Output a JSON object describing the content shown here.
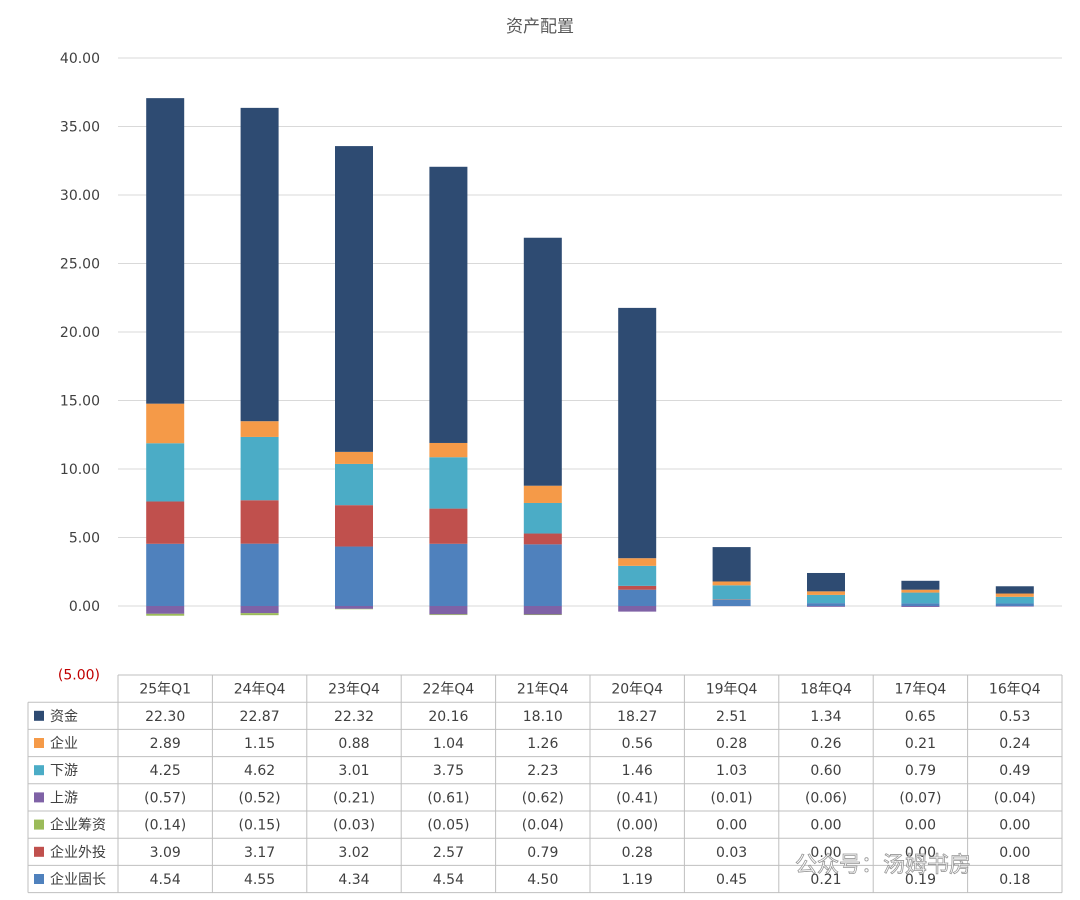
{
  "chart_data": {
    "type": "bar",
    "stacked": true,
    "title": "资产配置",
    "xlabel": "",
    "ylabel": "",
    "ylim": [
      -5,
      40
    ],
    "yticks": [
      "(5.00)",
      "0.00",
      "5.00",
      "10.00",
      "15.00",
      "20.00",
      "25.00",
      "30.00",
      "35.00",
      "40.00"
    ],
    "categories": [
      "25年Q1",
      "24年Q4",
      "23年Q4",
      "22年Q4",
      "21年Q4",
      "20年Q4",
      "19年Q4",
      "18年Q4",
      "17年Q4",
      "16年Q4"
    ],
    "series": [
      {
        "name": "资金",
        "color": "#2e4b72",
        "values": [
          22.3,
          22.87,
          22.32,
          20.16,
          18.1,
          18.27,
          2.51,
          1.34,
          0.65,
          0.53
        ],
        "labels": [
          "22.30",
          "22.87",
          "22.32",
          "20.16",
          "18.10",
          "18.27",
          "2.51",
          "1.34",
          "0.65",
          "0.53"
        ]
      },
      {
        "name": "企业",
        "color": "#f59a48",
        "values": [
          2.89,
          1.15,
          0.88,
          1.04,
          1.26,
          0.56,
          0.28,
          0.26,
          0.21,
          0.24
        ],
        "labels": [
          "2.89",
          "1.15",
          "0.88",
          "1.04",
          "1.26",
          "0.56",
          "0.28",
          "0.26",
          "0.21",
          "0.24"
        ]
      },
      {
        "name": "下游",
        "color": "#4bacc6",
        "values": [
          4.25,
          4.62,
          3.01,
          3.75,
          2.23,
          1.46,
          1.03,
          0.6,
          0.79,
          0.49
        ],
        "labels": [
          "4.25",
          "4.62",
          "3.01",
          "3.75",
          "2.23",
          "1.46",
          "1.03",
          "0.60",
          "0.79",
          "0.49"
        ]
      },
      {
        "name": "上游",
        "color": "#7f62a6",
        "values": [
          -0.57,
          -0.52,
          -0.21,
          -0.61,
          -0.62,
          -0.41,
          -0.01,
          -0.06,
          -0.07,
          -0.04
        ],
        "labels": [
          "(0.57)",
          "(0.52)",
          "(0.21)",
          "(0.61)",
          "(0.62)",
          "(0.41)",
          "(0.01)",
          "(0.06)",
          "(0.07)",
          "(0.04)"
        ]
      },
      {
        "name": "企业筹资",
        "color": "#9bbb59",
        "values": [
          -0.14,
          -0.15,
          -0.03,
          -0.05,
          -0.04,
          0.0,
          0.0,
          0.0,
          0.0,
          0.0
        ],
        "labels": [
          "(0.14)",
          "(0.15)",
          "(0.03)",
          "(0.05)",
          "(0.04)",
          "(0.00)",
          "0.00",
          "0.00",
          "0.00",
          "0.00"
        ]
      },
      {
        "name": "企业外投",
        "color": "#c0504d",
        "values": [
          3.09,
          3.17,
          3.02,
          2.57,
          0.79,
          0.28,
          0.03,
          0.0,
          0.0,
          0.0
        ],
        "labels": [
          "3.09",
          "3.17",
          "3.02",
          "2.57",
          "0.79",
          "0.28",
          "0.03",
          "0.00",
          "0.00",
          "0.00"
        ]
      },
      {
        "name": "企业固长",
        "color": "#4f81bd",
        "values": [
          4.54,
          4.55,
          4.34,
          4.54,
          4.5,
          1.19,
          0.45,
          0.21,
          0.19,
          0.18
        ],
        "labels": [
          "4.54",
          "4.55",
          "4.34",
          "4.54",
          "4.50",
          "1.19",
          "0.45",
          "0.21",
          "0.19",
          "0.18"
        ]
      }
    ],
    "stack_order_bottom_to_top": [
      "企业固长",
      "企业外投",
      "下游",
      "企业",
      "资金"
    ],
    "negative_stack_order": [
      "上游",
      "企业筹资"
    ],
    "data_table": true,
    "grid": true
  },
  "watermark": "公众号：汤姆书房"
}
